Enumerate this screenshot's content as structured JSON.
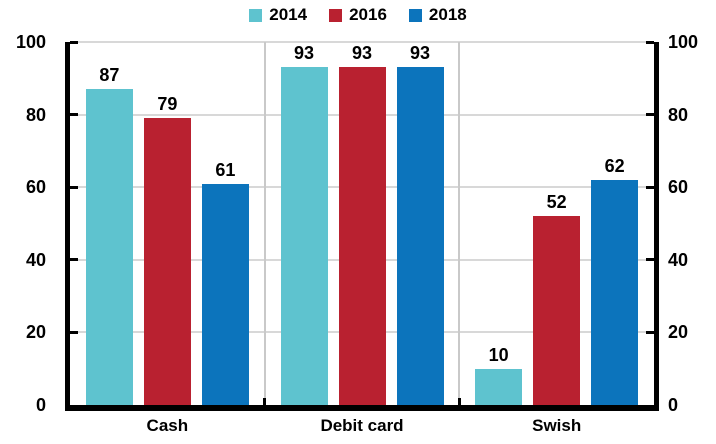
{
  "chart_data": {
    "type": "bar",
    "categories": [
      "Cash",
      "Debit card",
      "Swish"
    ],
    "series": [
      {
        "name": "2014",
        "color": "#5EC3CF",
        "values": [
          87,
          93,
          10
        ]
      },
      {
        "name": "2016",
        "color": "#B92130",
        "values": [
          79,
          93,
          52
        ]
      },
      {
        "name": "2018",
        "color": "#0C74BC",
        "values": [
          61,
          93,
          62
        ]
      }
    ],
    "ylim": [
      0,
      100
    ],
    "yticks": [
      0,
      20,
      40,
      60,
      80,
      100
    ],
    "grid": true,
    "legend_position": "top",
    "value_labels_shown": true
  },
  "colors": {
    "grid": "#D8D8D8",
    "separator": "#C9C9C9",
    "axis": "#000000",
    "text": "#000000",
    "background": "#FFFFFF"
  }
}
